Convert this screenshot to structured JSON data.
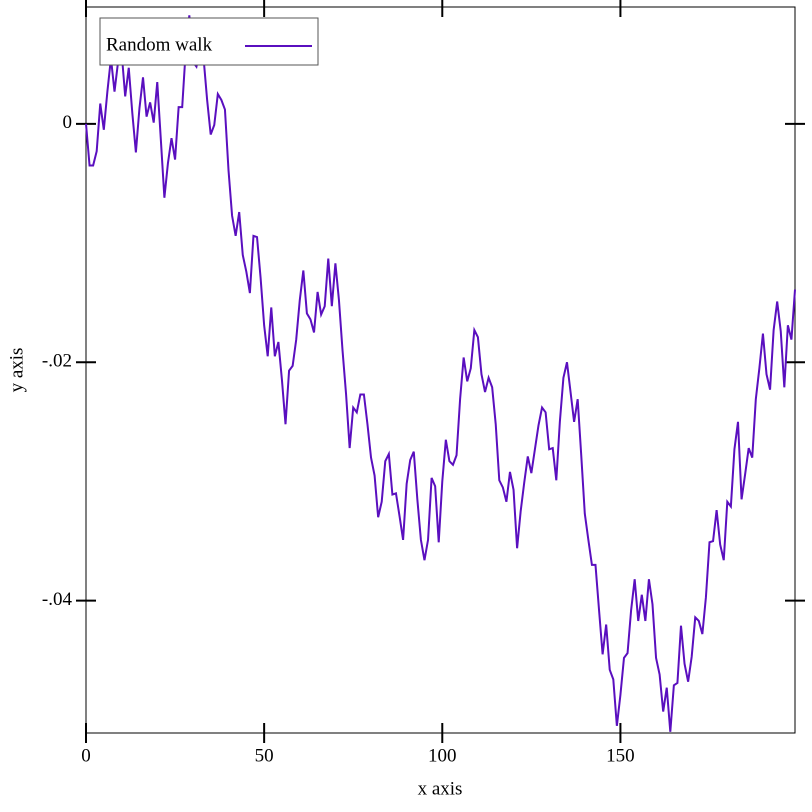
{
  "chart_data": {
    "type": "line",
    "xlabel": "x axis",
    "ylabel": "y axis",
    "xlim": [
      0,
      199
    ],
    "ylim": [
      -0.0511,
      0.0098
    ],
    "xticks": [
      0,
      50,
      100,
      150
    ],
    "yticks": [
      {
        "value": 0,
        "label": "0"
      },
      {
        "value": -0.02,
        "label": "-.02"
      },
      {
        "value": -0.04,
        "label": "-.04"
      }
    ],
    "legend": "top-left",
    "x": [
      0,
      1,
      2,
      3,
      4,
      5,
      6,
      7,
      8,
      9,
      10,
      11,
      12,
      13,
      14,
      15,
      16,
      17,
      18,
      19,
      20,
      21,
      22,
      23,
      24,
      25,
      26,
      27,
      28,
      29,
      30,
      31,
      32,
      33,
      34,
      35,
      36,
      37,
      38,
      39,
      40,
      41,
      42,
      43,
      44,
      45,
      46,
      47,
      48,
      49,
      50,
      51,
      52,
      53,
      54,
      55,
      56,
      57,
      58,
      59,
      60,
      61,
      62,
      63,
      64,
      65,
      66,
      67,
      68,
      69,
      70,
      71,
      72,
      73,
      74,
      75,
      76,
      77,
      78,
      79,
      80,
      81,
      82,
      83,
      84,
      85,
      86,
      87,
      88,
      89,
      90,
      91,
      92,
      93,
      94,
      95,
      96,
      97,
      98,
      99,
      100,
      101,
      102,
      103,
      104,
      105,
      106,
      107,
      108,
      109,
      110,
      111,
      112,
      113,
      114,
      115,
      116,
      117,
      118,
      119,
      120,
      121,
      122,
      123,
      124,
      125,
      126,
      127,
      128,
      129,
      130,
      131,
      132,
      133,
      134,
      135,
      136,
      137,
      138,
      139,
      140,
      141,
      142,
      143,
      144,
      145,
      146,
      147,
      148,
      149,
      150,
      151,
      152,
      153,
      154,
      155,
      156,
      157,
      158,
      159,
      160,
      161,
      162,
      163,
      164,
      165,
      166,
      167,
      168,
      169,
      170,
      171,
      172,
      173,
      174,
      175,
      176,
      177,
      178,
      179,
      180,
      181,
      182,
      183,
      184,
      185,
      186,
      187,
      188,
      189,
      190,
      191,
      192,
      193,
      194,
      195,
      196,
      197,
      198,
      199
    ],
    "series": [
      {
        "name": "Random walk",
        "color": "#5a0fbf",
        "values": [
          0,
          -0.0035,
          -0.0035,
          -0.0023,
          0.0017,
          -0.0005,
          0.0027,
          0.0055,
          0.0027,
          0.0052,
          0.006,
          0.0023,
          0.0047,
          0.0009,
          -0.0024,
          0.0013,
          0.0039,
          0.0006,
          0.0018,
          0.0001,
          0.0035,
          -0.0013,
          -0.0062,
          -0.0033,
          -0.0012,
          -0.003,
          0.0014,
          0.0014,
          0.0062,
          0.0091,
          0.0052,
          0.0048,
          0.0062,
          0.0055,
          0.002,
          -0.0009,
          -0.0001,
          0.0025,
          0.002,
          0.0012,
          -0.0039,
          -0.0077,
          -0.0094,
          -0.0074,
          -0.011,
          -0.0124,
          -0.0142,
          -0.0094,
          -0.0095,
          -0.0129,
          -0.0169,
          -0.0195,
          -0.0154,
          -0.0195,
          -0.0183,
          -0.0215,
          -0.0252,
          -0.0207,
          -0.0203,
          -0.0181,
          -0.0148,
          -0.0123,
          -0.0159,
          -0.0164,
          -0.0175,
          -0.0141,
          -0.016,
          -0.0153,
          -0.0113,
          -0.0153,
          -0.0117,
          -0.0148,
          -0.019,
          -0.0227,
          -0.0272,
          -0.0238,
          -0.0242,
          -0.0227,
          -0.0227,
          -0.0252,
          -0.028,
          -0.0295,
          -0.033,
          -0.0317,
          -0.0283,
          -0.0277,
          -0.0311,
          -0.031,
          -0.0329,
          -0.0349,
          -0.0302,
          -0.0282,
          -0.0275,
          -0.0315,
          -0.0349,
          -0.0366,
          -0.0349,
          -0.0297,
          -0.0304,
          -0.0351,
          -0.03,
          -0.0265,
          -0.0283,
          -0.0286,
          -0.0278,
          -0.0231,
          -0.0196,
          -0.0216,
          -0.0205,
          -0.0173,
          -0.0179,
          -0.021,
          -0.0225,
          -0.0213,
          -0.0221,
          -0.0252,
          -0.0299,
          -0.0305,
          -0.0317,
          -0.0292,
          -0.0307,
          -0.0356,
          -0.0325,
          -0.0301,
          -0.0279,
          -0.0293,
          -0.0273,
          -0.0253,
          -0.0238,
          -0.0242,
          -0.0273,
          -0.0272,
          -0.0299,
          -0.025,
          -0.0213,
          -0.02,
          -0.0225,
          -0.025,
          -0.0231,
          -0.0278,
          -0.0327,
          -0.0349,
          -0.037,
          -0.037,
          -0.0408,
          -0.0445,
          -0.042,
          -0.0458,
          -0.0466,
          -0.0505,
          -0.0479,
          -0.0448,
          -0.0444,
          -0.0408,
          -0.0382,
          -0.0417,
          -0.0395,
          -0.0417,
          -0.0382,
          -0.0403,
          -0.0448,
          -0.0462,
          -0.0493,
          -0.0473,
          -0.051,
          -0.0471,
          -0.0469,
          -0.0421,
          -0.0453,
          -0.0468,
          -0.0447,
          -0.0414,
          -0.0417,
          -0.0428,
          -0.0397,
          -0.0351,
          -0.035,
          -0.0324,
          -0.0353,
          -0.0366,
          -0.0317,
          -0.0321,
          -0.0273,
          -0.025,
          -0.0315,
          -0.0294,
          -0.0272,
          -0.028,
          -0.0231,
          -0.0205,
          -0.0176,
          -0.021,
          -0.0223,
          -0.0173,
          -0.0149,
          -0.0174,
          -0.0221,
          -0.0169,
          -0.0181,
          -0.0139
        ]
      }
    ]
  }
}
